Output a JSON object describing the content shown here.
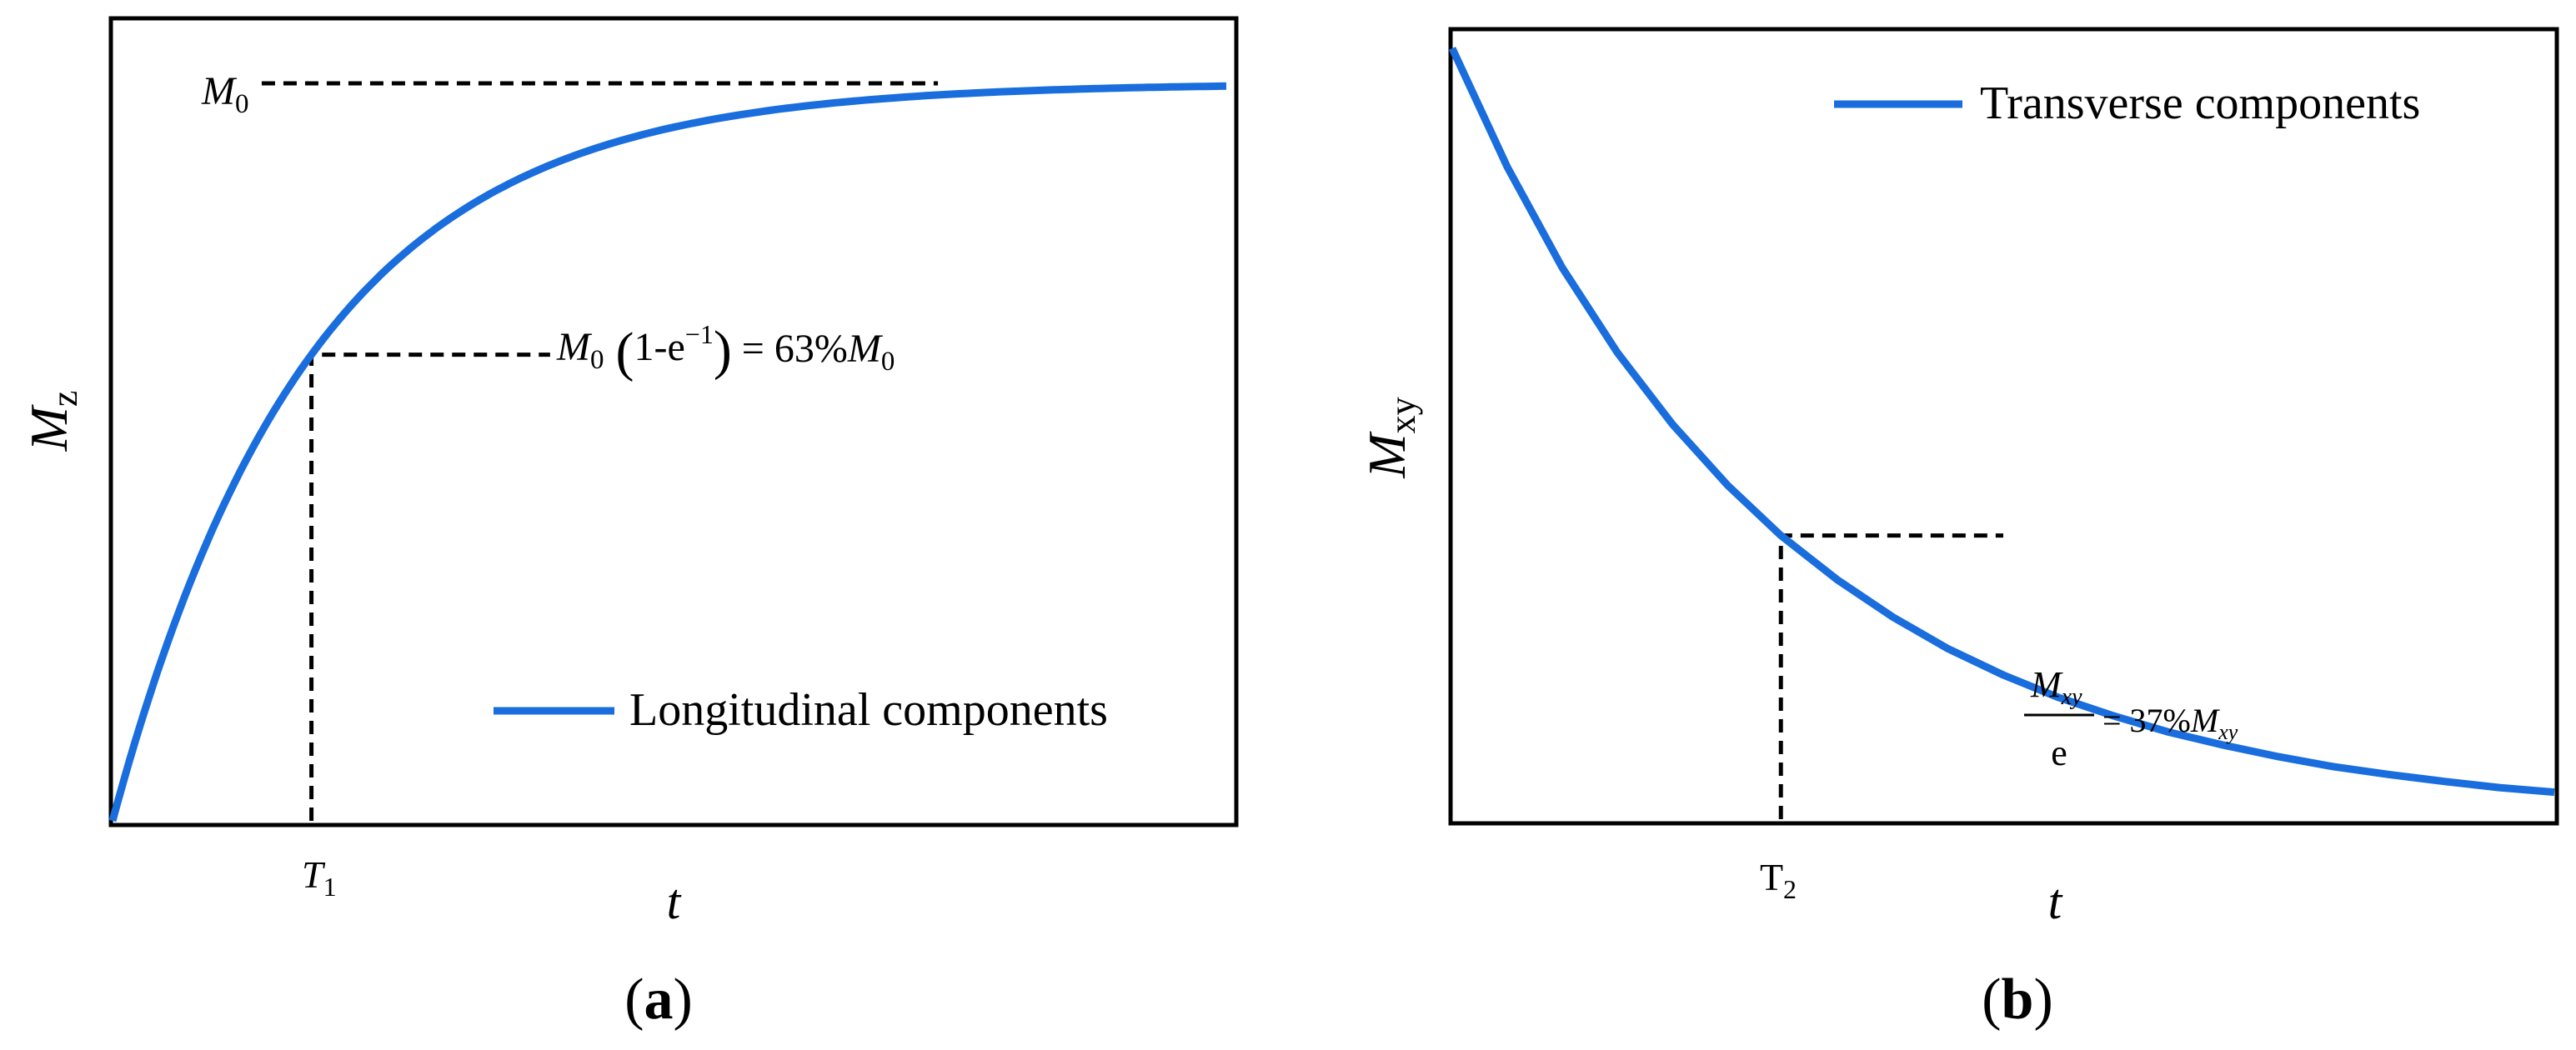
{
  "figure_captions": [
    "(a)",
    "(b)"
  ],
  "chart_data": [
    {
      "type": "line",
      "panel": "a",
      "caption": "(a)",
      "title": "",
      "xlabel": "t",
      "ylabel": {
        "main": "M",
        "sub": "z"
      },
      "xlim": [
        0,
        5.6
      ],
      "ylim": [
        0,
        1.0
      ],
      "ticks": {
        "x": "none",
        "y": "none"
      },
      "grid": false,
      "legend": {
        "position": "lower-right"
      },
      "colors": {
        "curve": "#1a6ddd",
        "guide": "#000000"
      },
      "series": [
        {
          "name": "Longitudinal components",
          "function": "M0*(1 - exp(-t/T1))",
          "T1": 1.0,
          "M0": 1.0,
          "x": [
            0,
            0.25,
            0.5,
            0.75,
            1.0,
            1.5,
            2.0,
            2.5,
            3.0,
            3.5,
            4.0,
            4.5,
            5.0,
            5.6
          ],
          "y": [
            0,
            0.221,
            0.393,
            0.528,
            0.632,
            0.777,
            0.865,
            0.918,
            0.95,
            0.97,
            0.982,
            0.989,
            0.993,
            0.996
          ]
        }
      ],
      "annotations": [
        {
          "id": "m0-level",
          "x_end": 4.15,
          "y": 1.0,
          "label": {
            "main": "M",
            "sub": "0"
          }
        },
        {
          "id": "t1-point",
          "x": 1.0,
          "y": 0.632,
          "x_end": 2.2,
          "label": {
            "m": "M",
            "m_sub": "0",
            "paren_open": "(",
            "body": "1-e",
            "exp": "−1",
            "paren_close": ")",
            "equals": " = 63%",
            "rhs": "M",
            "rhs_sub": "0"
          }
        },
        {
          "id": "t1-tick",
          "x": 1.0,
          "label": {
            "main": "T",
            "sub": "1"
          }
        }
      ]
    },
    {
      "type": "line",
      "panel": "b",
      "caption": "(b)",
      "title": "",
      "xlabel": "t",
      "ylabel": {
        "main": "M",
        "sub": "xy"
      },
      "xlim": [
        0,
        5.6
      ],
      "ylim": [
        0,
        1.0
      ],
      "ticks": {
        "x": "none",
        "y": "none"
      },
      "grid": false,
      "legend": {
        "position": "upper-right"
      },
      "colors": {
        "curve": "#1a6ddd",
        "guide": "#000000"
      },
      "series": [
        {
          "name": "Transverse components",
          "function": "Mxy*exp(-t/T2)",
          "T2": 1.67,
          "Mxy": 1.0,
          "x": [
            0,
            0.28,
            0.56,
            0.84,
            1.12,
            1.4,
            1.67,
            1.96,
            2.24,
            2.52,
            2.8,
            3.08,
            3.36,
            3.64,
            3.92,
            4.2,
            4.48,
            4.76,
            5.04,
            5.32,
            5.6
          ],
          "y": [
            1.0,
            0.846,
            0.715,
            0.605,
            0.512,
            0.433,
            0.368,
            0.31,
            0.262,
            0.221,
            0.187,
            0.158,
            0.134,
            0.113,
            0.096,
            0.081,
            0.068,
            0.058,
            0.049,
            0.041,
            0.035
          ]
        }
      ],
      "annotations": [
        {
          "id": "t2-point",
          "x": 1.67,
          "y": 0.368,
          "x_end": 2.8,
          "label": {
            "num": "M",
            "num_sub": "xy",
            "den": "e",
            "equals": "= 37%",
            "rhs": "M",
            "rhs_sub": "xy"
          }
        },
        {
          "id": "t2-tick",
          "x": 1.67,
          "label": {
            "main": "T",
            "sub": "2"
          }
        }
      ]
    }
  ]
}
